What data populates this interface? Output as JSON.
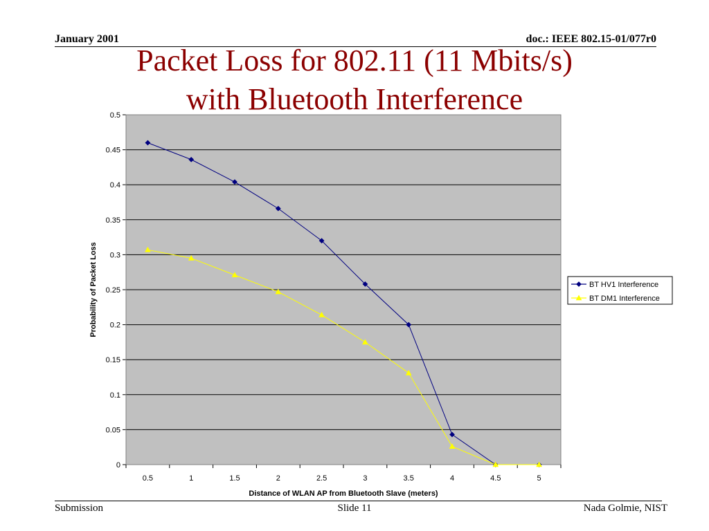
{
  "header": {
    "date": "January 2001",
    "doc": "doc.: IEEE 802.15-01/077r0"
  },
  "slide": {
    "title_line1": "Packet Loss for 802.11 (11 Mbits/s)",
    "title_line2": "with Bluetooth Interference"
  },
  "footer": {
    "left": "Submission",
    "center": "Slide 11",
    "right": "Nada Golmie, NIST"
  },
  "colors": {
    "plot_background": "#c0c0c0",
    "gridline": "#000000",
    "hv1": "#000080",
    "dm1": "#ffff00",
    "title": "#8b0000"
  },
  "chart_data": {
    "type": "line",
    "xlabel": "Distance of WLAN AP from Bluetooth Slave (meters)",
    "ylabel": "Probability of Packet Loss",
    "categories": [
      "0.5",
      "1",
      "1.5",
      "2",
      "2.5",
      "3",
      "3.5",
      "4",
      "4.5",
      "5"
    ],
    "y_ticks": [
      "0",
      "0.05",
      "0.1",
      "0.15",
      "0.2",
      "0.25",
      "0.3",
      "0.35",
      "0.4",
      "0.45",
      "0.5"
    ],
    "ylim": [
      0,
      0.5
    ],
    "grid": "horizontal major gridlines",
    "legend_position": "right",
    "series": [
      {
        "name": "BT HV1 Interference",
        "marker": "diamond",
        "color": "#000080",
        "values": [
          0.46,
          0.436,
          0.404,
          0.366,
          0.32,
          0.258,
          0.2,
          0.043,
          0,
          0
        ]
      },
      {
        "name": "BT DM1 Interference",
        "marker": "triangle",
        "color": "#ffff00",
        "values": [
          0.307,
          0.295,
          0.271,
          0.247,
          0.214,
          0.175,
          0.131,
          0.026,
          0,
          0
        ]
      }
    ]
  }
}
